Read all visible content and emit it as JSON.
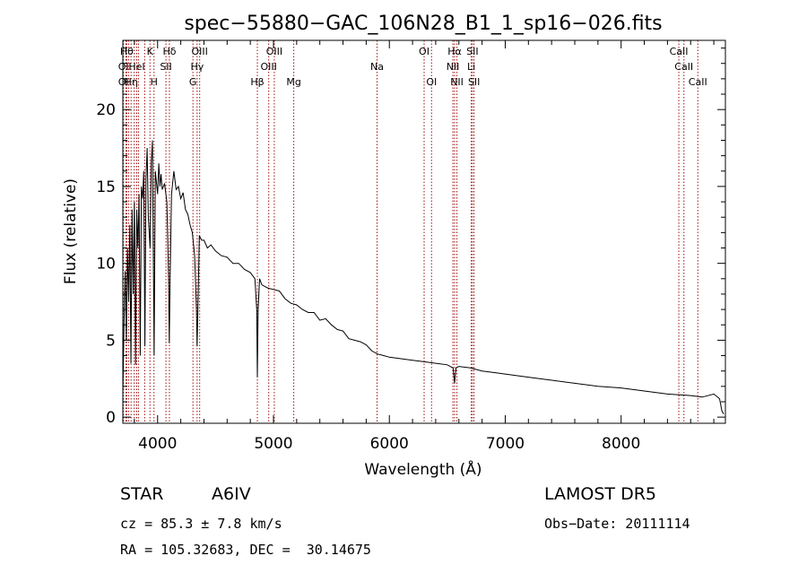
{
  "chart_data": {
    "type": "line",
    "title": "spec−55880−GAC_106N28_B1_1_sp16−026.fits",
    "xlabel": "Wavelength (Å)",
    "ylabel": "Flux (relative)",
    "xlim": [
      3700,
      8900
    ],
    "ylim": [
      -0.4,
      24.5
    ],
    "xticks": [
      4000,
      5000,
      6000,
      7000,
      8000
    ],
    "yticks": [
      0,
      5,
      10,
      15,
      20
    ],
    "grid": false,
    "line_color": "#000000",
    "marker_color": "#a01010",
    "series": [
      {
        "values": [
          [
            3700,
            1.5
          ],
          [
            3710,
            6.0
          ],
          [
            3720,
            9.5
          ],
          [
            3730,
            5.0
          ],
          [
            3740,
            11.0
          ],
          [
            3750,
            7.5
          ],
          [
            3760,
            12.5
          ],
          [
            3770,
            3.5
          ],
          [
            3780,
            13.5
          ],
          [
            3790,
            8.0
          ],
          [
            3800,
            14.0
          ],
          [
            3810,
            3.4
          ],
          [
            3820,
            13.5
          ],
          [
            3830,
            11.0
          ],
          [
            3840,
            14.5
          ],
          [
            3850,
            4.0
          ],
          [
            3860,
            15.0
          ],
          [
            3870,
            14.2
          ],
          [
            3880,
            16.0
          ],
          [
            3890,
            4.6
          ],
          [
            3900,
            15.5
          ],
          [
            3910,
            17.5
          ],
          [
            3920,
            13.0
          ],
          [
            3935,
            11.0
          ],
          [
            3945,
            16.5
          ],
          [
            3955,
            18.0
          ],
          [
            3970,
            4.0
          ],
          [
            3980,
            16.0
          ],
          [
            4000,
            14.5
          ],
          [
            4010,
            16.5
          ],
          [
            4020,
            15.0
          ],
          [
            4030,
            15.8
          ],
          [
            4040,
            14.8
          ],
          [
            4060,
            15.2
          ],
          [
            4080,
            14.0
          ],
          [
            4095,
            9.0
          ],
          [
            4101,
            4.8
          ],
          [
            4108,
            9.0
          ],
          [
            4120,
            14.5
          ],
          [
            4140,
            16.0
          ],
          [
            4160,
            14.8
          ],
          [
            4180,
            15.0
          ],
          [
            4200,
            14.2
          ],
          [
            4220,
            14.6
          ],
          [
            4240,
            13.5
          ],
          [
            4260,
            13.2
          ],
          [
            4280,
            12.5
          ],
          [
            4300,
            12.0
          ],
          [
            4320,
            10.5
          ],
          [
            4335,
            7.0
          ],
          [
            4341,
            4.6
          ],
          [
            4348,
            7.0
          ],
          [
            4360,
            11.8
          ],
          [
            4380,
            11.5
          ],
          [
            4400,
            11.5
          ],
          [
            4430,
            11.0
          ],
          [
            4460,
            11.2
          ],
          [
            4500,
            10.8
          ],
          [
            4550,
            10.5
          ],
          [
            4600,
            10.4
          ],
          [
            4650,
            10.0
          ],
          [
            4700,
            10.0
          ],
          [
            4750,
            9.6
          ],
          [
            4800,
            9.4
          ],
          [
            4840,
            9.0
          ],
          [
            4855,
            7.0
          ],
          [
            4861,
            2.6
          ],
          [
            4868,
            7.0
          ],
          [
            4880,
            9.0
          ],
          [
            4900,
            8.6
          ],
          [
            4950,
            8.4
          ],
          [
            5000,
            8.3
          ],
          [
            5050,
            8.2
          ],
          [
            5100,
            7.7
          ],
          [
            5150,
            7.4
          ],
          [
            5200,
            7.3
          ],
          [
            5250,
            7.0
          ],
          [
            5300,
            6.8
          ],
          [
            5350,
            6.8
          ],
          [
            5400,
            6.3
          ],
          [
            5450,
            6.4
          ],
          [
            5500,
            6.0
          ],
          [
            5550,
            5.7
          ],
          [
            5600,
            5.6
          ],
          [
            5650,
            5.1
          ],
          [
            5700,
            5.0
          ],
          [
            5750,
            4.9
          ],
          [
            5800,
            4.7
          ],
          [
            5850,
            4.3
          ],
          [
            5900,
            4.1
          ],
          [
            5950,
            4.0
          ],
          [
            6000,
            3.9
          ],
          [
            6100,
            3.8
          ],
          [
            6200,
            3.7
          ],
          [
            6300,
            3.6
          ],
          [
            6400,
            3.5
          ],
          [
            6500,
            3.4
          ],
          [
            6550,
            3.2
          ],
          [
            6563,
            2.2
          ],
          [
            6575,
            3.2
          ],
          [
            6600,
            3.3
          ],
          [
            6700,
            3.2
          ],
          [
            6800,
            3.0
          ],
          [
            6900,
            2.9
          ],
          [
            7000,
            2.8
          ],
          [
            7200,
            2.6
          ],
          [
            7400,
            2.4
          ],
          [
            7600,
            2.2
          ],
          [
            7800,
            2.0
          ],
          [
            8000,
            1.9
          ],
          [
            8200,
            1.7
          ],
          [
            8400,
            1.5
          ],
          [
            8600,
            1.4
          ],
          [
            8700,
            1.3
          ],
          [
            8800,
            1.5
          ],
          [
            8850,
            1.2
          ],
          [
            8870,
            0.4
          ],
          [
            8885,
            0.2
          ]
        ]
      }
    ],
    "lines": [
      {
        "wl": 3705,
        "labels": [
          {
            "text": "OI",
            "row": 1
          },
          {
            "text": "OI",
            "row": 2
          }
        ]
      },
      {
        "wl": 3727,
        "labels": []
      },
      {
        "wl": 3734,
        "labels": [
          {
            "text": "Hθ",
            "row": 0
          }
        ]
      },
      {
        "wl": 3750,
        "labels": []
      },
      {
        "wl": 3771,
        "labels": [
          {
            "text": "Hη",
            "row": 2
          }
        ]
      },
      {
        "wl": 3798,
        "labels": []
      },
      {
        "wl": 3820,
        "labels": [
          {
            "text": "HeI",
            "row": 1
          }
        ]
      },
      {
        "wl": 3835,
        "labels": []
      },
      {
        "wl": 3889,
        "labels": []
      },
      {
        "wl": 3934,
        "labels": [
          {
            "text": "K",
            "row": 0
          }
        ]
      },
      {
        "wl": 3969,
        "labels": [
          {
            "text": "H",
            "row": 2
          }
        ]
      },
      {
        "wl": 4072,
        "labels": [
          {
            "text": "SII",
            "row": 1
          }
        ]
      },
      {
        "wl": 4102,
        "labels": [
          {
            "text": "Hδ",
            "row": 0
          }
        ]
      },
      {
        "wl": 4305,
        "labels": [
          {
            "text": "G",
            "row": 2
          }
        ]
      },
      {
        "wl": 4341,
        "labels": [
          {
            "text": "Hγ",
            "row": 1
          }
        ]
      },
      {
        "wl": 4363,
        "labels": [
          {
            "text": "OIII",
            "row": 0
          }
        ]
      },
      {
        "wl": 4861,
        "labels": [
          {
            "text": "Hβ",
            "row": 2
          }
        ]
      },
      {
        "wl": 4959,
        "labels": [
          {
            "text": "OIII",
            "row": 1
          }
        ]
      },
      {
        "wl": 5007,
        "labels": [
          {
            "text": "OIII",
            "row": 0
          }
        ]
      },
      {
        "wl": 5175,
        "labels": [
          {
            "text": "Mg",
            "row": 2
          }
        ]
      },
      {
        "wl": 5894,
        "labels": [
          {
            "text": "Na",
            "row": 1
          }
        ]
      },
      {
        "wl": 6300,
        "labels": [
          {
            "text": "OI",
            "row": 0
          }
        ]
      },
      {
        "wl": 6364,
        "labels": [
          {
            "text": "OI",
            "row": 2
          }
        ]
      },
      {
        "wl": 6548,
        "labels": [
          {
            "text": "NII",
            "row": 1
          }
        ]
      },
      {
        "wl": 6563,
        "labels": [
          {
            "text": "Hα",
            "row": 0
          }
        ]
      },
      {
        "wl": 6583,
        "labels": [
          {
            "text": "NII",
            "row": 2
          }
        ]
      },
      {
        "wl": 6707,
        "labels": [
          {
            "text": "Li",
            "row": 1
          }
        ]
      },
      {
        "wl": 6717,
        "labels": [
          {
            "text": "SII",
            "row": 0
          }
        ]
      },
      {
        "wl": 6731,
        "labels": [
          {
            "text": "SII",
            "row": 2
          }
        ]
      },
      {
        "wl": 8498,
        "labels": [
          {
            "text": "CaII",
            "row": 0
          }
        ]
      },
      {
        "wl": 8542,
        "labels": [
          {
            "text": "CaII",
            "row": 1
          }
        ]
      },
      {
        "wl": 8662,
        "labels": [
          {
            "text": "CaII",
            "row": 2
          }
        ]
      }
    ]
  },
  "info": {
    "class_label": "STAR",
    "subclass": "A6IV",
    "survey": "LAMOST DR5",
    "cz": "cz = 85.3 ± 7.8 km/s",
    "obs_date": "Obs−Date: 20111114",
    "radec": "RA = 105.32683, DEC =  30.14675"
  }
}
